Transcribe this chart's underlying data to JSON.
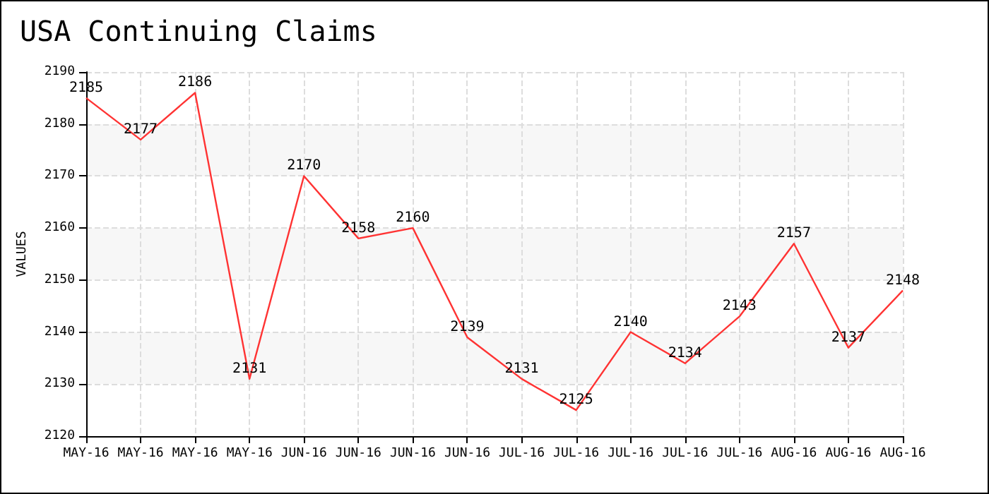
{
  "chart_data": {
    "type": "line",
    "title": "USA Continuing Claims",
    "ylabel": "VALUES",
    "categories": [
      "MAY-16",
      "MAY-16",
      "MAY-16",
      "MAY-16",
      "JUN-16",
      "JUN-16",
      "JUN-16",
      "JUN-16",
      "JUL-16",
      "JUL-16",
      "JUL-16",
      "JUL-16",
      "JUL-16",
      "AUG-16",
      "AUG-16",
      "AUG-16"
    ],
    "series": [
      {
        "color": "#ff3333",
        "values": [
          2185,
          2177,
          2186,
          2131,
          2170,
          2158,
          2160,
          2139,
          2131,
          2125,
          2140,
          2134,
          2143,
          2157,
          2137,
          2148
        ]
      }
    ],
    "ylim": [
      2120,
      2190
    ],
    "yticks": [
      2120,
      2130,
      2140,
      2150,
      2160,
      2170,
      2180,
      2190
    ],
    "data_labels": true,
    "grid": true,
    "marker": "none",
    "line_style": "solid"
  }
}
